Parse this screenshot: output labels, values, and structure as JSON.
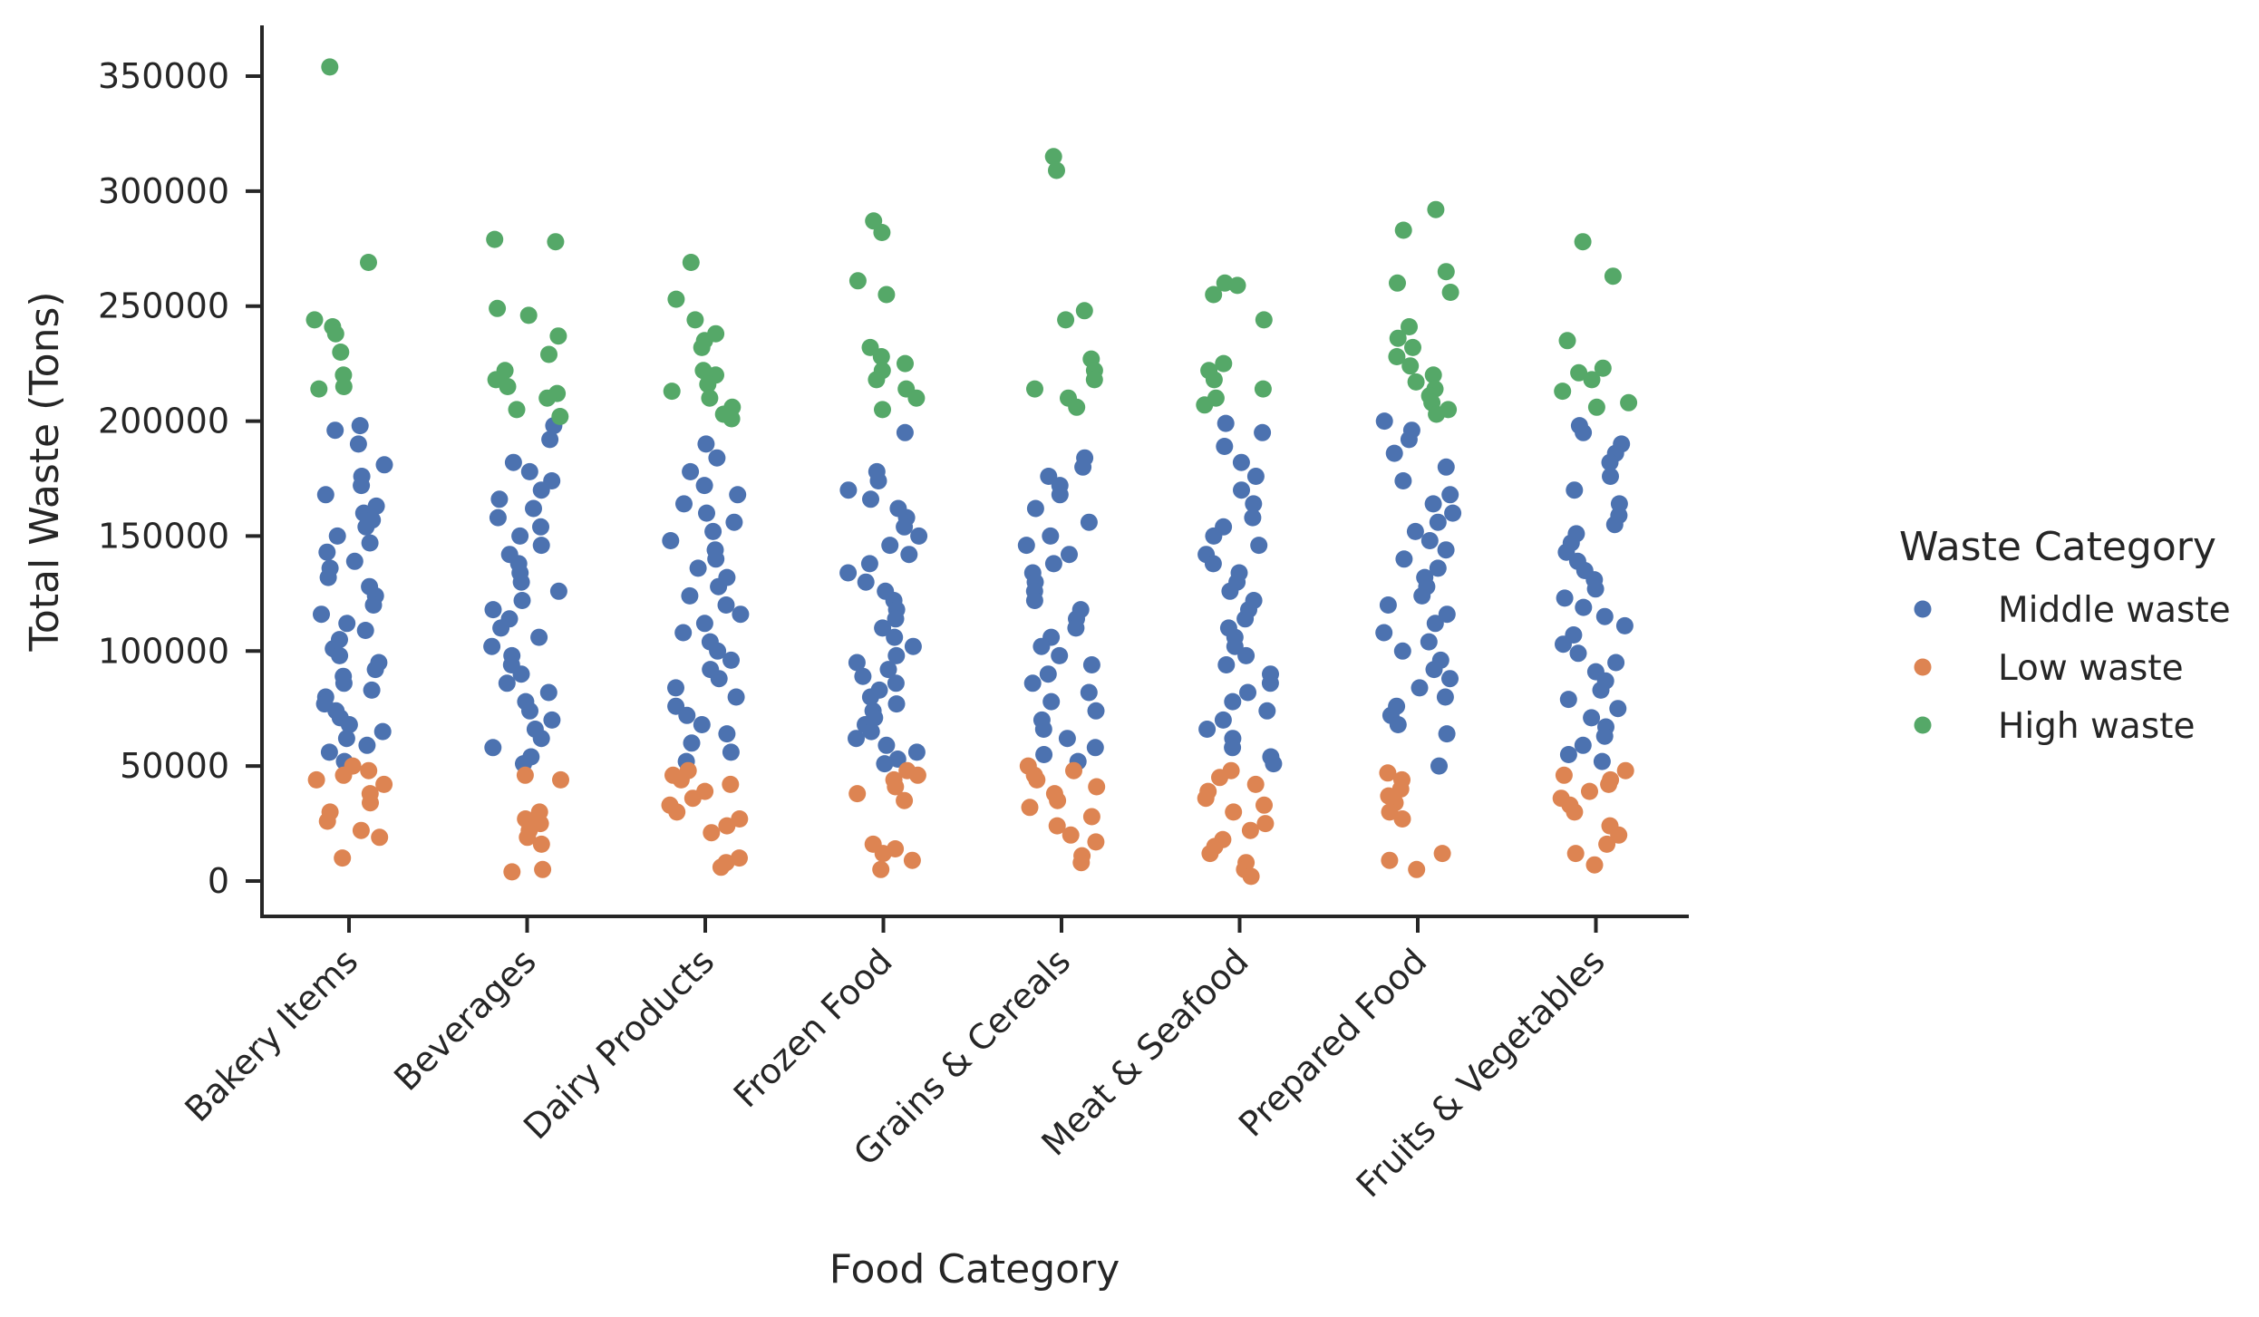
{
  "chart_data": {
    "type": "scatter",
    "subtype": "strip",
    "title": "",
    "xlabel": "Food Category",
    "ylabel": "Total Waste (Tons)",
    "categories": [
      "Bakery Items",
      "Beverages",
      "Dairy Products",
      "Frozen Food",
      "Grains & Cereals",
      "Meat & Seafood",
      "Prepared Food",
      "Fruits & Vegetables"
    ],
    "ylim": [
      -15000,
      370000
    ],
    "yticks": [
      0,
      50000,
      100000,
      150000,
      200000,
      250000,
      300000,
      350000
    ],
    "ytick_labels": [
      "0",
      "50000",
      "100000",
      "150000",
      "200000",
      "250000",
      "300000",
      "350000"
    ],
    "grid": false,
    "legend": {
      "title": "Waste Category",
      "placement": "right"
    },
    "jitter": 0.2,
    "series": [
      {
        "name": "Middle waste",
        "color": "#4c72b0",
        "values": [
          [
            198000,
            196000,
            190000,
            181000,
            176000,
            172000,
            168000,
            163000,
            160000,
            157000,
            154000,
            150000,
            147000,
            143000,
            139000,
            136000,
            132000,
            128000,
            124000,
            120000,
            116000,
            112000,
            109000,
            105000,
            101000,
            98000,
            95000,
            92000,
            89000,
            86000,
            83000,
            80000,
            77000,
            74000,
            71000,
            68000,
            65000,
            62000,
            59000,
            56000,
            52000
          ],
          [
            198000,
            192000,
            182000,
            178000,
            174000,
            170000,
            166000,
            162000,
            158000,
            154000,
            150000,
            146000,
            142000,
            138000,
            134000,
            130000,
            126000,
            122000,
            118000,
            114000,
            110000,
            106000,
            102000,
            98000,
            94000,
            90000,
            86000,
            82000,
            78000,
            74000,
            70000,
            66000,
            62000,
            58000,
            54000,
            51000
          ],
          [
            190000,
            184000,
            178000,
            172000,
            168000,
            164000,
            160000,
            156000,
            152000,
            148000,
            144000,
            140000,
            136000,
            132000,
            128000,
            124000,
            120000,
            116000,
            112000,
            108000,
            104000,
            100000,
            96000,
            92000,
            88000,
            84000,
            80000,
            76000,
            72000,
            68000,
            64000,
            60000,
            56000,
            52000
          ],
          [
            195000,
            178000,
            174000,
            170000,
            166000,
            162000,
            158000,
            154000,
            150000,
            146000,
            142000,
            138000,
            134000,
            130000,
            126000,
            122000,
            118000,
            114000,
            110000,
            106000,
            102000,
            98000,
            95000,
            92000,
            89000,
            86000,
            83000,
            80000,
            77000,
            74000,
            71000,
            68000,
            65000,
            62000,
            59000,
            56000,
            53000,
            51000
          ],
          [
            184000,
            180000,
            176000,
            172000,
            168000,
            162000,
            156000,
            150000,
            146000,
            142000,
            138000,
            134000,
            130000,
            126000,
            122000,
            118000,
            114000,
            110000,
            106000,
            102000,
            98000,
            94000,
            90000,
            86000,
            82000,
            78000,
            74000,
            70000,
            66000,
            62000,
            58000,
            55000,
            52000
          ],
          [
            199000,
            195000,
            189000,
            182000,
            176000,
            170000,
            164000,
            158000,
            154000,
            150000,
            146000,
            142000,
            138000,
            134000,
            130000,
            126000,
            122000,
            118000,
            114000,
            110000,
            106000,
            102000,
            98000,
            94000,
            90000,
            86000,
            82000,
            78000,
            74000,
            70000,
            66000,
            62000,
            58000,
            54000,
            51000
          ],
          [
            200000,
            196000,
            192000,
            186000,
            180000,
            174000,
            168000,
            164000,
            160000,
            156000,
            152000,
            148000,
            144000,
            140000,
            136000,
            132000,
            128000,
            124000,
            120000,
            116000,
            112000,
            108000,
            104000,
            100000,
            96000,
            92000,
            88000,
            84000,
            80000,
            76000,
            72000,
            68000,
            64000,
            50000
          ],
          [
            198000,
            195000,
            190000,
            186000,
            182000,
            176000,
            170000,
            164000,
            159000,
            155000,
            151000,
            147000,
            143000,
            139000,
            135000,
            131000,
            127000,
            123000,
            119000,
            115000,
            111000,
            107000,
            103000,
            99000,
            95000,
            91000,
            87000,
            83000,
            79000,
            75000,
            71000,
            67000,
            63000,
            59000,
            55000,
            52000
          ]
        ]
      },
      {
        "name": "Low waste",
        "color": "#dd8452",
        "values": [
          [
            50000,
            48000,
            46000,
            44000,
            42000,
            38000,
            34000,
            30000,
            26000,
            22000,
            19000,
            10000
          ],
          [
            46000,
            44000,
            30000,
            27000,
            25000,
            22000,
            19000,
            16000,
            5000,
            4000
          ],
          [
            48000,
            46000,
            44000,
            42000,
            39000,
            36000,
            33000,
            30000,
            27000,
            24000,
            21000,
            10000,
            8000,
            6000
          ],
          [
            48000,
            46000,
            44000,
            41000,
            38000,
            35000,
            16000,
            14000,
            12000,
            9000,
            5000
          ],
          [
            50000,
            48000,
            46000,
            44000,
            41000,
            38000,
            35000,
            32000,
            28000,
            24000,
            20000,
            17000,
            11000,
            8000
          ],
          [
            48000,
            45000,
            42000,
            39000,
            36000,
            33000,
            30000,
            25000,
            22000,
            18000,
            15000,
            12000,
            8000,
            5000,
            2000
          ],
          [
            47000,
            44000,
            40000,
            37000,
            34000,
            30000,
            27000,
            12000,
            9000,
            5000
          ],
          [
            48000,
            46000,
            44000,
            42000,
            39000,
            36000,
            33000,
            30000,
            24000,
            20000,
            16000,
            12000,
            7000
          ]
        ]
      },
      {
        "name": "High waste",
        "color": "#55a868",
        "values": [
          [
            354000,
            269000,
            244000,
            241000,
            238000,
            230000,
            220000,
            215000,
            214000
          ],
          [
            279000,
            278000,
            249000,
            246000,
            237000,
            229000,
            222000,
            218000,
            215000,
            212000,
            210000,
            205000,
            202000
          ],
          [
            269000,
            253000,
            244000,
            238000,
            235000,
            232000,
            222000,
            220000,
            216000,
            213000,
            210000,
            206000,
            203000,
            201000
          ],
          [
            287000,
            282000,
            261000,
            255000,
            232000,
            228000,
            225000,
            222000,
            218000,
            214000,
            210000,
            205000
          ],
          [
            315000,
            309000,
            248000,
            244000,
            227000,
            222000,
            218000,
            214000,
            210000,
            206000
          ],
          [
            260000,
            259000,
            255000,
            244000,
            225000,
            222000,
            218000,
            214000,
            210000,
            207000
          ],
          [
            292000,
            283000,
            265000,
            260000,
            256000,
            241000,
            236000,
            232000,
            228000,
            224000,
            220000,
            217000,
            214000,
            211000,
            208000,
            205000,
            203000
          ],
          [
            278000,
            263000,
            235000,
            223000,
            221000,
            218000,
            213000,
            208000,
            206000
          ]
        ]
      }
    ]
  }
}
